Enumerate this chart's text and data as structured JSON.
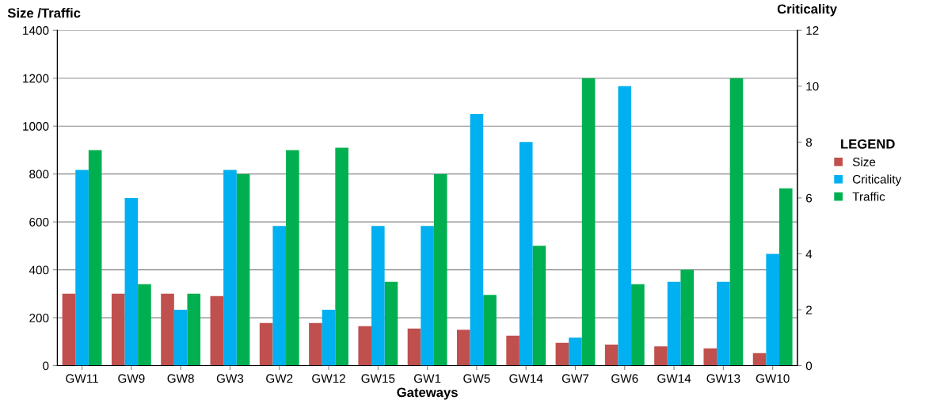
{
  "chart_data": {
    "type": "bar",
    "xlabel": "Gateways",
    "ylabel": "Size /Traffic",
    "y2label": "Criticality",
    "legend_title": "LEGEND",
    "categories": [
      "GW11",
      "GW9",
      "GW8",
      "GW3",
      "GW2",
      "GW12",
      "GW15",
      "GW1",
      "GW5",
      "GW14",
      "GW7",
      "GW6",
      "GW14",
      "GW13",
      "GW10"
    ],
    "series": [
      {
        "name": "Size",
        "color": "#c0504d",
        "values": [
          300,
          300,
          300,
          290,
          178,
          178,
          165,
          155,
          150,
          125,
          95,
          88,
          80,
          72,
          52
        ]
      },
      {
        "name": "Criticality",
        "color": "#00b0f0",
        "axis": "y2",
        "values": [
          7,
          6,
          2,
          7,
          5,
          2,
          5,
          5,
          9,
          8,
          1,
          10,
          3,
          3,
          4
        ]
      },
      {
        "name": "Traffic",
        "color": "#00b050",
        "values": [
          900,
          340,
          300,
          800,
          900,
          910,
          350,
          800,
          295,
          500,
          1200,
          340,
          400,
          1200,
          740
        ]
      }
    ],
    "ylim": [
      0,
      1400
    ],
    "yticks": [
      0,
      200,
      400,
      600,
      800,
      1000,
      1200,
      1400
    ],
    "y2lim": [
      0,
      12
    ],
    "y2ticks": [
      0,
      2,
      4,
      6,
      8,
      10,
      12
    ],
    "grid": "y",
    "legend": "right"
  }
}
